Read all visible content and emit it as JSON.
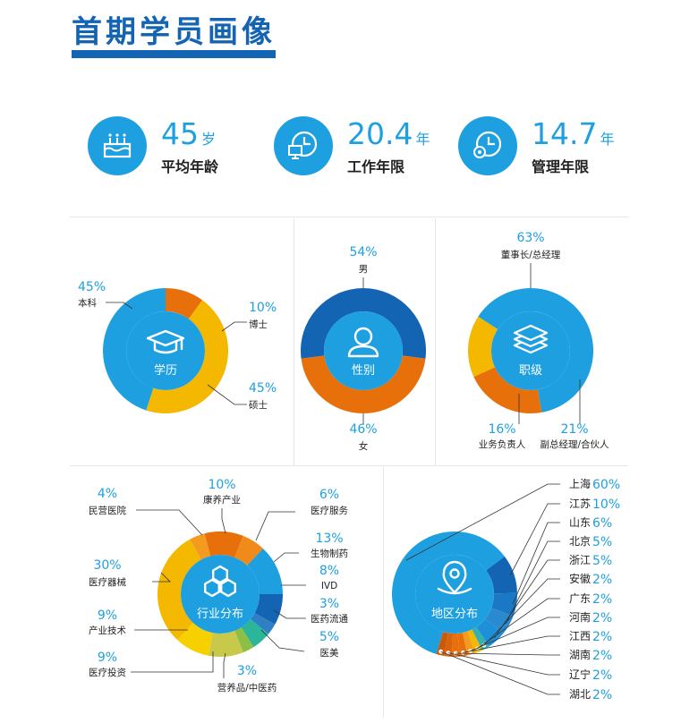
{
  "title": "首期学员画像",
  "stats": [
    {
      "value": "45",
      "unit": "岁",
      "label": "平均年龄",
      "icon": "cake-icon"
    },
    {
      "value": "20.4",
      "unit": "年",
      "label": "工作年限",
      "icon": "computer-clock-icon"
    },
    {
      "value": "14.7",
      "unit": "年",
      "label": "管理年限",
      "icon": "gear-clock-icon"
    }
  ],
  "colors": {
    "blue_light": "#1ea0e0",
    "blue_dark": "#1464b4",
    "orange": "#e8700a",
    "yellow": "#f5b800",
    "green": "#8cbf44",
    "teal": "#2bb59a"
  },
  "chart_data": [
    {
      "type": "pie",
      "title": "学历",
      "icon": "graduation-cap-icon",
      "slices": [
        {
          "label": "本科",
          "value": 45,
          "pct_text": "45%",
          "color": "#1ea0e0"
        },
        {
          "label": "博士",
          "value": 10,
          "pct_text": "10%",
          "color": "#e8700a"
        },
        {
          "label": "硕士",
          "value": 45,
          "pct_text": "45%",
          "color": "#f5b800"
        }
      ]
    },
    {
      "type": "pie",
      "title": "性别",
      "icon": "person-icon",
      "slices": [
        {
          "label": "男",
          "value": 54,
          "pct_text": "54%",
          "color": "#1464b4"
        },
        {
          "label": "女",
          "value": 46,
          "pct_text": "46%",
          "color": "#e8700a"
        }
      ]
    },
    {
      "type": "pie",
      "title": "职级",
      "icon": "layers-icon",
      "slices": [
        {
          "label": "董事长/总经理",
          "value": 63,
          "pct_text": "63%",
          "color": "#1ea0e0"
        },
        {
          "label": "副总经理/合伙人",
          "value": 21,
          "pct_text": "21%",
          "color": "#e8700a"
        },
        {
          "label": "业务负责人",
          "value": 16,
          "pct_text": "16%",
          "color": "#f5b800"
        }
      ]
    },
    {
      "type": "pie",
      "title": "行业分布",
      "icon": "hexagons-icon",
      "slices": [
        {
          "label": "康养产业",
          "value": 10,
          "pct_text": "10%",
          "color": "#e8700a"
        },
        {
          "label": "医疗服务",
          "value": 6,
          "pct_text": "6%",
          "color": "#f08a1a"
        },
        {
          "label": "生物制药",
          "value": 13,
          "pct_text": "13%",
          "color": "#1ea0e0"
        },
        {
          "label": "IVD",
          "value": 8,
          "pct_text": "8%",
          "color": "#1464b4"
        },
        {
          "label": "医药流通",
          "value": 3,
          "pct_text": "3%",
          "color": "#2e7fc4"
        },
        {
          "label": "医美",
          "value": 5,
          "pct_text": "5%",
          "color": "#2bb59a"
        },
        {
          "label": "营养品/中医药",
          "value": 3,
          "pct_text": "3%",
          "color": "#8cbf44"
        },
        {
          "label": "医疗投资",
          "value": 9,
          "pct_text": "9%",
          "color": "#c8c84a"
        },
        {
          "label": "产业技术",
          "value": 9,
          "pct_text": "9%",
          "color": "#f7d000"
        },
        {
          "label": "医疗器械",
          "value": 30,
          "pct_text": "30%",
          "color": "#f5b800"
        },
        {
          "label": "民营医院",
          "value": 4,
          "pct_text": "4%",
          "color": "#f29b1e"
        }
      ]
    },
    {
      "type": "pie",
      "title": "地区分布",
      "icon": "location-pin-icon",
      "slices": [
        {
          "label": "上海",
          "value": 60,
          "pct_text": "60%",
          "color": "#1ea0e0"
        },
        {
          "label": "江苏",
          "value": 10,
          "pct_text": "10%",
          "color": "#1464b4"
        },
        {
          "label": "山东",
          "value": 6,
          "pct_text": "6%",
          "color": "#1a78c4"
        },
        {
          "label": "北京",
          "value": 5,
          "pct_text": "5%",
          "color": "#2a8ad0"
        },
        {
          "label": "浙江",
          "value": 5,
          "pct_text": "5%",
          "color": "#1e90d8"
        },
        {
          "label": "安徽",
          "value": 2,
          "pct_text": "2%",
          "color": "#37b0b0"
        },
        {
          "label": "广东",
          "value": 2,
          "pct_text": "2%",
          "color": "#f5b800"
        },
        {
          "label": "河南",
          "value": 2,
          "pct_text": "2%",
          "color": "#f29b1e"
        },
        {
          "label": "江西",
          "value": 2,
          "pct_text": "2%",
          "color": "#e8700a"
        },
        {
          "label": "湖南",
          "value": 2,
          "pct_text": "2%",
          "color": "#e8700a"
        },
        {
          "label": "辽宁",
          "value": 2,
          "pct_text": "2%",
          "color": "#d9620a"
        },
        {
          "label": "湖北",
          "value": 2,
          "pct_text": "2%",
          "color": "#c85a0a"
        }
      ]
    }
  ]
}
